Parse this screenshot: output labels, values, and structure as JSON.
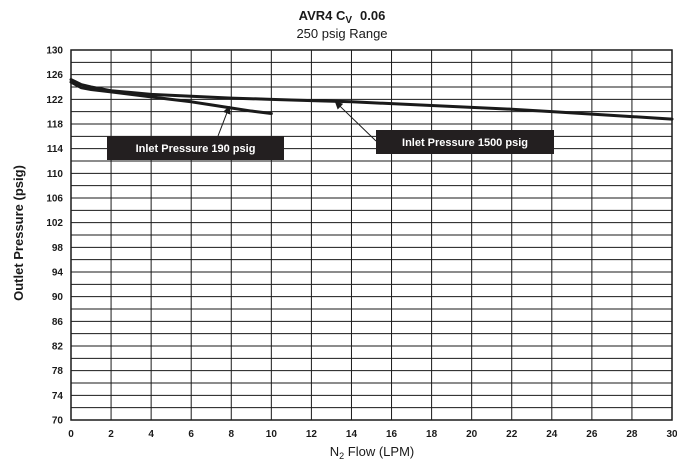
{
  "chart_data": {
    "type": "line",
    "title": "AVR4 C",
    "title_subscript": "V",
    "title_value": "0.06",
    "subtitle": "250 psig Range",
    "ylabel": "Outlet Pressure (psig)",
    "xlabel_prefix": "N",
    "xlabel_subscript": "2",
    "xlabel_suffix": " Flow (LPM)",
    "xlim": [
      0,
      30
    ],
    "ylim": [
      70,
      130
    ],
    "x_ticks": [
      0,
      2,
      4,
      6,
      8,
      10,
      12,
      14,
      16,
      18,
      20,
      22,
      24,
      26,
      28,
      30
    ],
    "y_ticks": [
      70,
      74,
      78,
      82,
      86,
      90,
      94,
      98,
      102,
      106,
      110,
      114,
      118,
      122,
      126,
      130
    ],
    "y_grid_lines": [
      70,
      72,
      74,
      76,
      78,
      80,
      82,
      84,
      86,
      88,
      90,
      92,
      94,
      96,
      98,
      100,
      102,
      104,
      106,
      108,
      110,
      112,
      114,
      116,
      118,
      120,
      122,
      124,
      126,
      128,
      130
    ],
    "grid": true,
    "series": [
      {
        "name": "Inlet Pressure 190 psig",
        "x": [
          0,
          0.5,
          1,
          2,
          3,
          4,
          5,
          6,
          7,
          8,
          9,
          10
        ],
        "y": [
          124.8,
          123.9,
          123.6,
          123.2,
          122.8,
          122.4,
          122.0,
          121.6,
          121.1,
          120.6,
          120.1,
          119.7
        ]
      },
      {
        "name": "Inlet Pressure 1500 psig",
        "x": [
          0,
          0.5,
          1,
          2,
          4,
          6,
          8,
          10,
          12,
          14,
          16,
          18,
          20,
          22,
          24,
          26,
          28,
          30
        ],
        "y": [
          125.2,
          124.4,
          124.0,
          123.4,
          122.8,
          122.5,
          122.2,
          122.0,
          121.8,
          121.6,
          121.3,
          121.0,
          120.7,
          120.4,
          120.0,
          119.6,
          119.2,
          118.8
        ]
      }
    ],
    "annotations": [
      {
        "text": "Inlet Pressure 190 psig",
        "arrow_to": [
          7.9,
          120.8
        ]
      },
      {
        "text": "Inlet Pressure 1500 psig",
        "arrow_to": [
          13.2,
          121.6
        ]
      }
    ]
  }
}
